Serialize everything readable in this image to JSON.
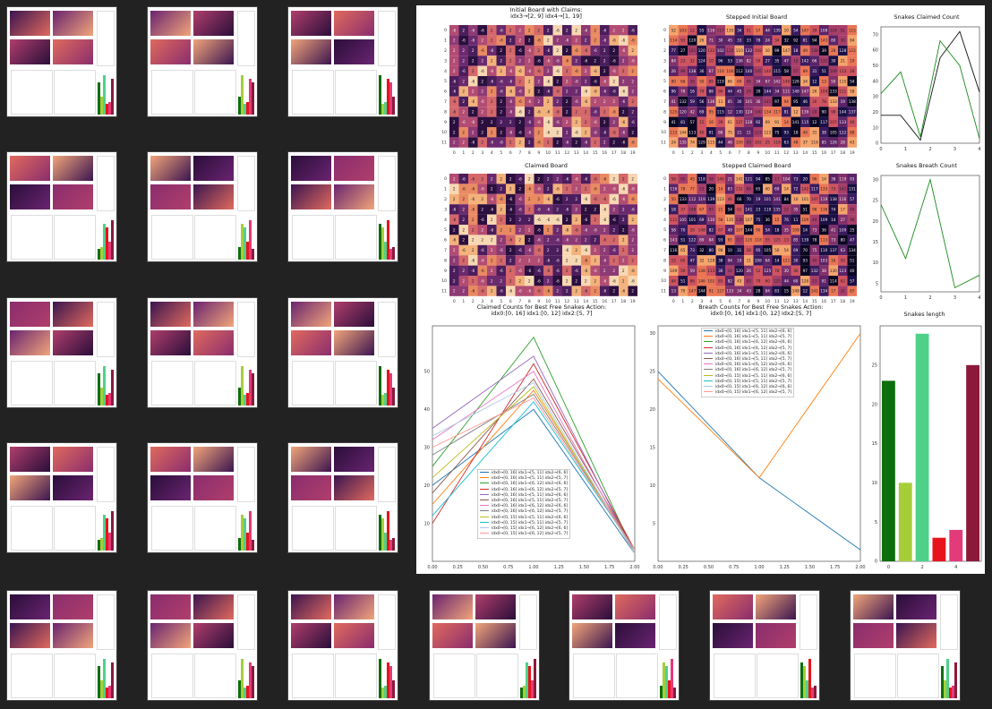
{
  "viewer": {
    "titles": {
      "initial_board": "Initial Board with Claims:",
      "initial_board_sub": "idx3→[2, 9] idx4→[1, 19]",
      "stepped_initial": "Stepped Initial Board",
      "snakes_claimed": "Snakes Claimed Count",
      "claimed_board": "Claimed Board",
      "stepped_claimed": "Stepped Claimed Board",
      "snakes_breath": "Snakes Breath Count",
      "claimed_counts": "Claimed Counts for Best Free Snakes Action:",
      "claimed_counts_sub": "idx0:[0, 16] idx1:[0, 12] idx2:[5, 7]",
      "breath_counts": "Breath Counts for Best Free Snakes Action:",
      "breath_counts_sub": "idx0:[0, 16] idx1:[0, 12] idx2:[5, 7]",
      "snakes_length": "Snakes length"
    },
    "legend_entries": [
      "idx0→[0, 16] idx1→[5, 11] idx2→[6, 6]",
      "idx0→[0, 16] idx1→[5, 11] idx2→[5, 7]",
      "idx0→[0, 16] idx1→[6, 12] idx2→[6, 6]",
      "idx0→[0, 16] idx1→[6, 12] idx2→[5, 7]",
      "idx0→[0, 16] idx1→[5, 11] idx2→[6, 6]",
      "idx0→[0, 16] idx1→[5, 11] idx2→[5, 7]",
      "idx0→[0, 16] idx1→[6, 12] idx2→[6, 6]",
      "idx0→[0, 16] idx1→[6, 12] idx2→[5, 7]",
      "idx0→[0, 15] idx1→[5, 11] idx2→[6, 6]",
      "idx0→[0, 15] idx1→[5, 11] idx2→[5, 7]",
      "idx0→[0, 15] idx1→[6, 12] idx2→[6, 6]",
      "idx0→[0, 15] idx1→[6, 12] idx2→[5, 7]"
    ],
    "series_colors": [
      "#1f77b4",
      "#ff7f0e",
      "#2ca02c",
      "#d62728",
      "#9467bd",
      "#8c564b",
      "#e377c2",
      "#7f7f7f",
      "#bcbd22",
      "#17becf",
      "#aec7e8",
      "#ff9896"
    ],
    "claimed_counts_chart": {
      "x_ticks": [
        "0.00",
        "0.25",
        "0.50",
        "0.75",
        "1.00",
        "1.25",
        "1.50",
        "1.75",
        "2.00"
      ],
      "y_ticks": [
        "10",
        "20",
        "30",
        "40",
        "50"
      ],
      "series": [
        {
          "values": [
            20,
            40,
            2
          ]
        },
        {
          "values": [
            15,
            45,
            3
          ]
        },
        {
          "values": [
            25,
            59,
            2
          ]
        },
        {
          "values": [
            10,
            52,
            3
          ]
        },
        {
          "values": [
            35,
            54,
            2
          ]
        },
        {
          "values": [
            18,
            48,
            3
          ]
        },
        {
          "values": [
            32,
            50,
            2
          ]
        },
        {
          "values": [
            28,
            44,
            3
          ]
        },
        {
          "values": [
            22,
            46,
            2
          ]
        },
        {
          "values": [
            12,
            42,
            3
          ]
        },
        {
          "values": [
            33,
            47,
            2
          ]
        },
        {
          "values": [
            30,
            43,
            3
          ]
        }
      ]
    },
    "breath_counts_chart": {
      "x_ticks": [
        "0.00",
        "0.25",
        "0.50",
        "0.75",
        "1.00",
        "1.25",
        "1.50",
        "1.75",
        "2.00"
      ],
      "y_ticks": [
        "5",
        "10",
        "15",
        "20",
        "25",
        "30"
      ],
      "series": [
        {
          "values": [
            25,
            11,
            1.5
          ]
        },
        {
          "values": [
            24,
            11,
            30
          ]
        }
      ]
    },
    "snakes_claimed_chart": {
      "x_ticks": [
        "0",
        "1",
        "2",
        "3",
        "4"
      ],
      "y_ticks": [
        "0",
        "10",
        "20",
        "30",
        "40",
        "50",
        "60",
        "70"
      ],
      "series": [
        {
          "color": "#111111",
          "values": [
            18,
            18,
            2,
            55,
            72,
            33
          ]
        },
        {
          "color": "#1a8a1a",
          "values": [
            32,
            46,
            4,
            66,
            50,
            3
          ]
        }
      ]
    },
    "snakes_breath_chart": {
      "x_ticks": [
        "0",
        "1",
        "2",
        "3",
        "4"
      ],
      "y_ticks": [
        "5",
        "10",
        "15",
        "20",
        "25",
        "30"
      ],
      "series": [
        {
          "color": "#1a8a1a",
          "values": [
            24,
            11,
            30,
            4,
            7
          ]
        }
      ]
    },
    "snakes_length_chart": {
      "x_ticks": [
        "0",
        "2",
        "4"
      ],
      "y_ticks": [
        "0",
        "5",
        "10",
        "15",
        "20",
        "25"
      ],
      "bars": [
        {
          "value": 23,
          "color": "#0d6e0d"
        },
        {
          "value": 10,
          "color": "#a6ce39"
        },
        {
          "value": 29,
          "color": "#4fd18a"
        },
        {
          "value": 3,
          "color": "#e8141c"
        },
        {
          "value": 4,
          "color": "#e33a7a"
        },
        {
          "value": 25,
          "color": "#8b1a3a"
        }
      ]
    },
    "board_axis_labels": [
      "0",
      "1",
      "2",
      "3",
      "4",
      "5",
      "6",
      "7",
      "8",
      "9",
      "10",
      "11",
      "12",
      "13",
      "14",
      "15",
      "16",
      "17",
      "18",
      "19"
    ]
  }
}
